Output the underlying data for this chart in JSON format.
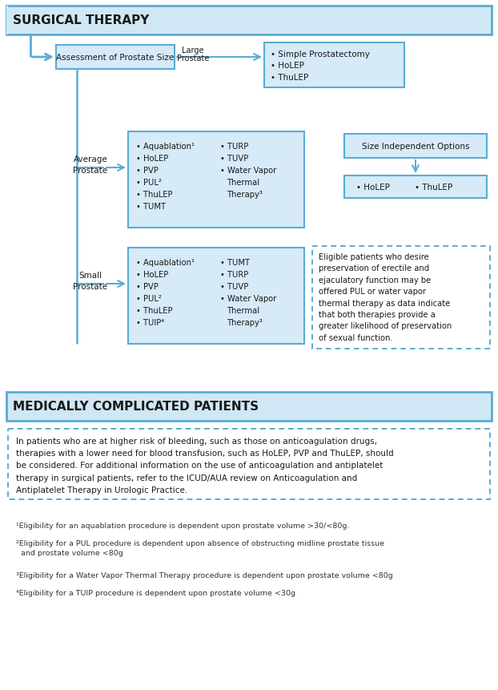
{
  "title_surgical": "SURGICAL THERAPY",
  "title_medical": "MEDICALLY COMPLICATED PATIENTS",
  "box_fill": "#d6eaf8",
  "header_fill": "#d0e8f5",
  "box_edge": "#5bacd4",
  "arrow_color": "#5bacd4",
  "text_color": "#1a1a1a",
  "footnote_color": "#333333",
  "footnotes": [
    "¹Eligibility for an aquablation procedure is dependent upon prostate volume >30/<80g.",
    "²Eligibility for a PUL procedure is dependent upon absence of obstructing midline prostate tissue\n  and prostate volume <80g",
    "³Eligibility for a Water Vapor Thermal Therapy procedure is dependent upon prostate volume <80g",
    "⁴Eligibility for a TUIP procedure is dependent upon prostate volume <30g"
  ],
  "medically_text": "In patients who are at higher risk of bleeding, such as those on anticoagulation drugs,\ntherapies with a lower need for blood transfusion, such as HoLEP, PVP and ThuLEP, should\nbe considered. For additional information on the use of anticoagulation and antiplatelet\ntherapy in surgical patients, refer to the ICUD/AUA review on Anticoagulation and\nAntiplatelet Therapy in Urologic Practice."
}
